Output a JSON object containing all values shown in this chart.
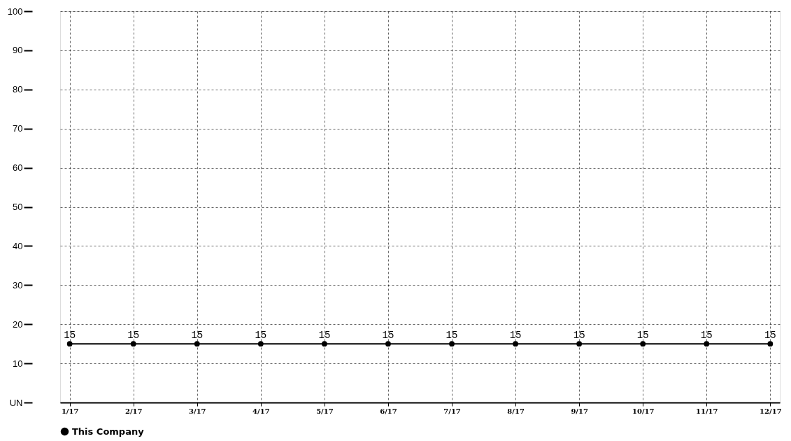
{
  "chart_data": {
    "type": "line",
    "categories": [
      "1/17",
      "2/17",
      "3/17",
      "4/17",
      "5/17",
      "6/17",
      "7/17",
      "8/17",
      "9/17",
      "10/17",
      "11/17",
      "12/17"
    ],
    "series": [
      {
        "name": "This Company",
        "color": "#000000",
        "values": [
          15,
          15,
          15,
          15,
          15,
          15,
          15,
          15,
          15,
          15,
          15,
          15
        ]
      }
    ],
    "ylim": [
      0,
      100
    ],
    "yticks": [
      {
        "value": 0,
        "label": "UN"
      },
      10,
      20,
      30,
      40,
      50,
      60,
      70,
      80,
      90,
      100
    ],
    "grid": true,
    "legend": "bottom",
    "marker": "circle",
    "line_style": "solid",
    "data_labels": true
  }
}
